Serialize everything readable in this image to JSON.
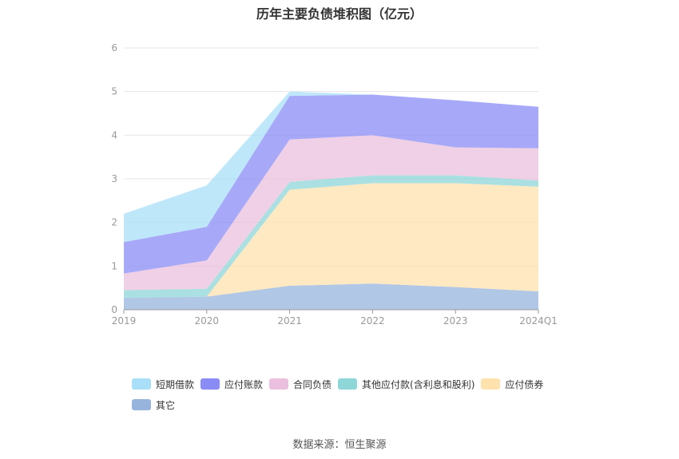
{
  "chart_data": {
    "type": "area",
    "stacked": true,
    "title": "历年主要负债堆积图（亿元）",
    "categories": [
      "2019",
      "2020",
      "2021",
      "2022",
      "2023",
      "2024Q1"
    ],
    "ylim": [
      0,
      6
    ],
    "yticks": [
      0,
      1,
      2,
      3,
      4,
      5,
      6
    ],
    "grid": true,
    "legend_position": "bottom",
    "series": [
      {
        "name": "其它",
        "color": "#97b4dd",
        "values": [
          0.27,
          0.3,
          0.55,
          0.6,
          0.52,
          0.42
        ]
      },
      {
        "name": "应付债券",
        "color": "#fde2ad",
        "values": [
          0.0,
          0.0,
          2.2,
          2.3,
          2.38,
          2.4
        ]
      },
      {
        "name": "其他应付款(含利息和股利)",
        "color": "#8ed6d8",
        "values": [
          0.18,
          0.18,
          0.18,
          0.18,
          0.18,
          0.14
        ]
      },
      {
        "name": "合同负债",
        "color": "#ebc0de",
        "values": [
          0.38,
          0.65,
          0.97,
          0.92,
          0.64,
          0.74
        ]
      },
      {
        "name": "应付账款",
        "color": "#8a8cf5",
        "values": [
          0.72,
          0.77,
          1.0,
          0.93,
          1.08,
          0.95
        ]
      },
      {
        "name": "短期借款",
        "color": "#a9dff8",
        "values": [
          0.65,
          0.95,
          0.1,
          0.0,
          0.0,
          0.0
        ]
      }
    ],
    "legend_order": [
      "短期借款",
      "应付账款",
      "合同负债",
      "其他应付款(含利息和股利)",
      "应付债券",
      "其它"
    ]
  },
  "source": "数据来源：恒生聚源"
}
